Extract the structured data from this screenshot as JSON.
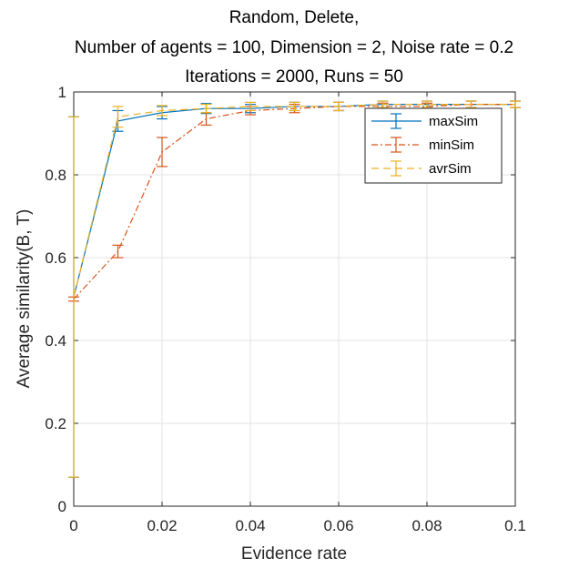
{
  "chart_data": {
    "type": "line",
    "title_lines": [
      "Random, Delete,",
      "Number of agents = 100, Dimension = 2, Noise rate = 0.2",
      "Iterations = 2000, Runs = 50"
    ],
    "xlabel": "Evidence rate",
    "ylabel": "Average similarity(B, T)",
    "xlim": [
      0,
      0.1
    ],
    "ylim": [
      0,
      1
    ],
    "xticks": [
      0,
      0.02,
      0.04,
      0.06,
      0.08,
      0.1
    ],
    "xtick_labels": [
      "0",
      "0.02",
      "0.04",
      "0.06",
      "0.08",
      "0.1"
    ],
    "yticks": [
      0,
      0.2,
      0.4,
      0.6,
      0.8,
      1
    ],
    "ytick_labels": [
      "0",
      "0.2",
      "0.4",
      "0.6",
      "0.8",
      "1"
    ],
    "grid": true,
    "legend_position": "top-right",
    "x": [
      0,
      0.01,
      0.02,
      0.03,
      0.04,
      0.05,
      0.06,
      0.07,
      0.08,
      0.09,
      0.1
    ],
    "series": [
      {
        "name": "maxSim",
        "color": "#0072BD",
        "dash": "solid",
        "values": [
          0.505,
          0.93,
          0.95,
          0.96,
          0.96,
          0.965,
          0.965,
          0.97,
          0.97,
          0.97,
          0.97
        ],
        "errors": [
          0.435,
          0.025,
          0.015,
          0.012,
          0.01,
          0.01,
          0.01,
          0.008,
          0.008,
          0.008,
          0.008
        ]
      },
      {
        "name": "minSim",
        "color": "#D95319",
        "dash": "dashdot",
        "values": [
          0.5,
          0.615,
          0.855,
          0.935,
          0.955,
          0.96,
          0.965,
          0.965,
          0.965,
          0.97,
          0.97
        ],
        "errors": [
          0.005,
          0.015,
          0.035,
          0.015,
          0.01,
          0.01,
          0.01,
          0.008,
          0.008,
          0.008,
          0.008
        ]
      },
      {
        "name": "avrSim",
        "color": "#EDB120",
        "dash": "dashed",
        "values": [
          0.505,
          0.94,
          0.955,
          0.96,
          0.965,
          0.965,
          0.965,
          0.97,
          0.97,
          0.97,
          0.97
        ],
        "errors": [
          0.435,
          0.025,
          0.012,
          0.01,
          0.01,
          0.01,
          0.01,
          0.008,
          0.008,
          0.008,
          0.008
        ]
      }
    ]
  }
}
